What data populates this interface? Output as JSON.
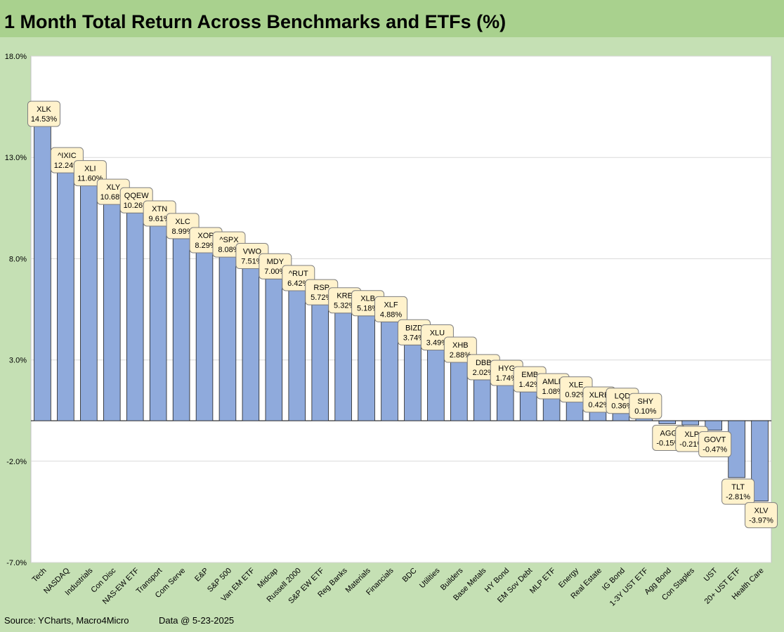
{
  "title": "1 Month Total Return Across Benchmarks and ETFs (%)",
  "source": "Source: YCharts, Macro4Micro",
  "data_date": "Data @ 5-23-2025",
  "colors": {
    "bar": "#8faadc",
    "bar_border": "#1f1f1f",
    "label_fill": "#fff2cc",
    "plot_bg": "#ffffff",
    "grid": "#d9d9d9",
    "outer_bg": "#c5e0b4",
    "title_bg": "#a9d18e"
  },
  "chart_data": {
    "type": "bar",
    "title": "1 Month Total Return Across Benchmarks and ETFs (%)",
    "xlabel": "",
    "ylabel": "",
    "ylim": [
      -7.0,
      18.0
    ],
    "yticks": [
      18.0,
      13.0,
      8.0,
      3.0,
      -2.0,
      -7.0
    ],
    "ytick_labels": [
      "18.0%",
      "13.0%",
      "8.0%",
      "3.0%",
      "-2.0%",
      "-7.0%"
    ],
    "grid": true,
    "legend": "none",
    "categories": [
      "Tech",
      "NASDAQ",
      "Industrials",
      "Con Disc",
      "NAS-EW ETF",
      "Transport",
      "Com Serve",
      "E&P",
      "S&P 500",
      "Van EM ETF",
      "Midcap",
      "Russell 2000",
      "S&P EW ETF",
      "Reg Banks",
      "Materials",
      "Financials",
      "BDC",
      "Utilities",
      "Builders",
      "Base Metals",
      "HY Bond",
      "EM Sov Debt",
      "MLP ETF",
      "Energy",
      "Real Estate",
      "IG Bond",
      "1-3Y UST ETF",
      "Agg Bond",
      "Con Staples",
      "UST",
      "20+ UST ETF",
      "Health Care"
    ],
    "tickers": [
      "XLK",
      "^IXIC",
      "XLI",
      "XLY",
      "QQEW",
      "XTN",
      "XLC",
      "XOP",
      "^SPX",
      "VWO",
      "MDY",
      "^RUT",
      "RSP",
      "KRE",
      "XLB",
      "XLF",
      "BIZD",
      "XLU",
      "XHB",
      "DBB",
      "HYG",
      "EMB",
      "AMLP",
      "XLE",
      "XLRE",
      "LQD",
      "SHY",
      "AGG",
      "XLP",
      "GOVT",
      "TLT",
      "XLV"
    ],
    "values": [
      14.53,
      12.24,
      11.6,
      10.68,
      10.26,
      9.61,
      8.99,
      8.29,
      8.08,
      7.51,
      7.0,
      6.42,
      5.72,
      5.32,
      5.18,
      4.88,
      3.74,
      3.49,
      2.88,
      2.02,
      1.74,
      1.42,
      1.08,
      0.92,
      0.42,
      0.36,
      0.1,
      -0.15,
      -0.21,
      -0.47,
      -2.81,
      -3.97
    ],
    "value_labels": [
      "14.53%",
      "12.24%",
      "11.60%",
      "10.68%",
      "10.26%",
      "9.61%",
      "8.99%",
      "8.29%",
      "8.08%",
      "7.51%",
      "7.00%",
      "6.42%",
      "5.72%",
      "5.32%",
      "5.18%",
      "4.88%",
      "3.74%",
      "3.49%",
      "2.88%",
      "2.02%",
      "1.74%",
      "1.42%",
      "1.08%",
      "0.92%",
      "0.42%",
      "0.36%",
      "0.10%",
      "-0.15%",
      "-0.21%",
      "-0.47%",
      "-2.81%",
      "-3.97%"
    ]
  }
}
